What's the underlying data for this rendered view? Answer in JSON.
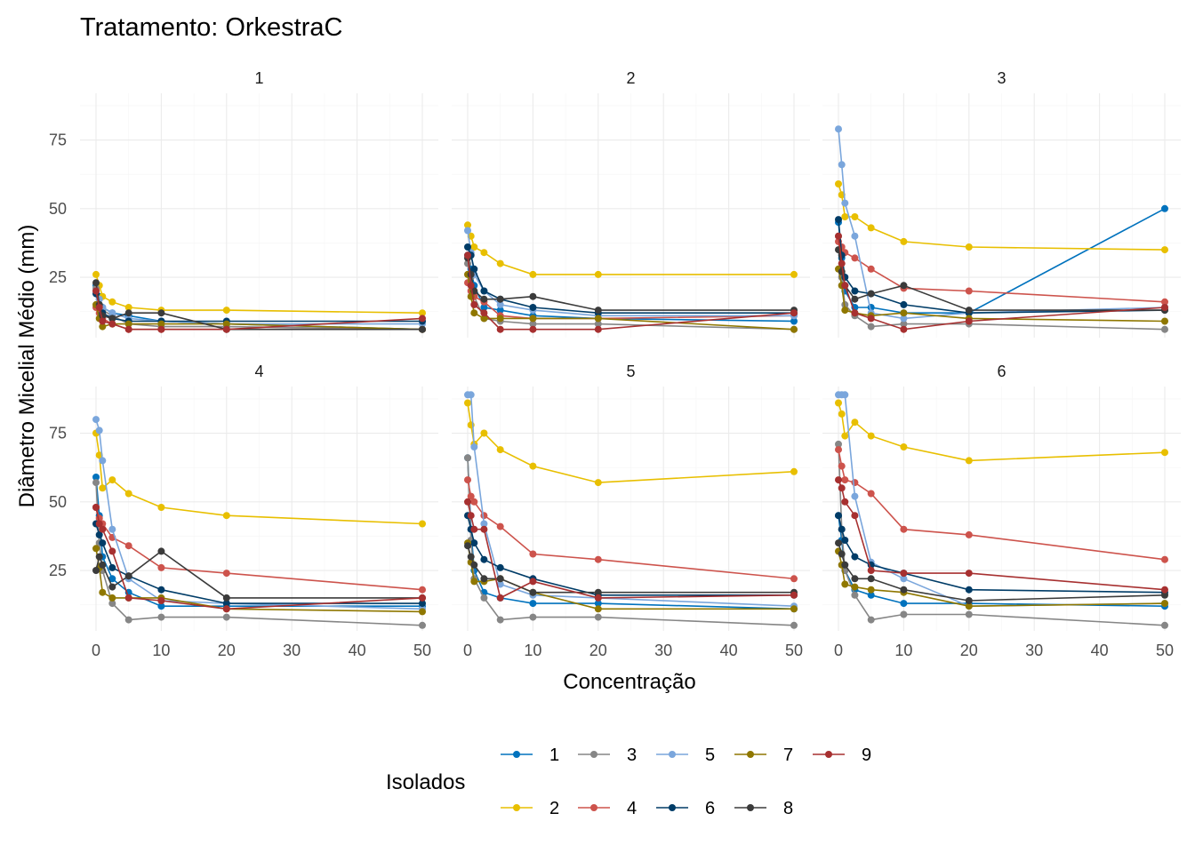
{
  "chart_data": {
    "type": "line",
    "title": "Tratamento: OrkestraC",
    "xlabel": "Concentração",
    "ylabel": "Diâmetro Micelial Médio (mm)",
    "x": [
      0,
      0.5,
      1,
      2.5,
      5,
      10,
      20,
      50
    ],
    "xlim": [
      0,
      50
    ],
    "ylim": [
      3,
      92
    ],
    "x_ticks": [
      "0",
      "10",
      "20",
      "30",
      "40",
      "50"
    ],
    "y_ticks": [
      "25",
      "50",
      "75"
    ],
    "grid": true,
    "legend": {
      "title": "Isolados",
      "position": "bottom",
      "entries": [
        "1",
        "3",
        "5",
        "7",
        "9",
        "2",
        "4",
        "6",
        "8"
      ]
    },
    "series_colors": {
      "1": "#0072BD",
      "2": "#E8BF00",
      "3": "#868686",
      "4": "#CD534C",
      "5": "#7AA6DC",
      "6": "#003C67",
      "7": "#8F7700",
      "8": "#3B3B3B",
      "9": "#A73030"
    },
    "panels": [
      {
        "label": "1",
        "series": [
          {
            "name": "1",
            "values": [
              22,
              18,
              14,
              12,
              11,
              9,
              8,
              6
            ]
          },
          {
            "name": "2",
            "values": [
              26,
              22,
              18,
              16,
              14,
              13,
              13,
              12
            ]
          },
          {
            "name": "3",
            "values": [
              21,
              17,
              13,
              11,
              8,
              7,
              7,
              6
            ]
          },
          {
            "name": "4",
            "values": [
              14,
              12,
              10,
              8,
              6,
              6,
              6,
              6
            ]
          },
          {
            "name": "5",
            "values": [
              20,
              17,
              14,
              12,
              10,
              9,
              8,
              8
            ]
          },
          {
            "name": "6",
            "values": [
              19,
              15,
              12,
              10,
              9,
              9,
              9,
              9
            ]
          },
          {
            "name": "7",
            "values": [
              15,
              10,
              7,
              8,
              8,
              8,
              8,
              6
            ]
          },
          {
            "name": "8",
            "values": [
              23,
              15,
              11,
              10,
              12,
              12,
              6,
              6
            ]
          },
          {
            "name": "9",
            "values": [
              20,
              14,
              9,
              8,
              6,
              6,
              6,
              10
            ]
          }
        ]
      },
      {
        "label": "2",
        "series": [
          {
            "name": "1",
            "values": [
              33,
              28,
              22,
              14,
              13,
              11,
              10,
              9
            ]
          },
          {
            "name": "2",
            "values": [
              44,
              40,
              36,
              34,
              30,
              26,
              26,
              26
            ]
          },
          {
            "name": "3",
            "values": [
              30,
              25,
              18,
              10,
              9,
              8,
              8,
              6
            ]
          },
          {
            "name": "4",
            "values": [
              23,
              20,
              18,
              16,
              11,
              10,
              10,
              11
            ]
          },
          {
            "name": "5",
            "values": [
              42,
              34,
              26,
              20,
              15,
              13,
              11,
              11
            ]
          },
          {
            "name": "6",
            "values": [
              36,
              33,
              28,
              20,
              17,
              14,
              12,
              12
            ]
          },
          {
            "name": "7",
            "values": [
              26,
              18,
              12,
              10,
              10,
              10,
              10,
              6
            ]
          },
          {
            "name": "8",
            "values": [
              32,
              26,
              20,
              17,
              17,
              18,
              13,
              13
            ]
          },
          {
            "name": "9",
            "values": [
              33,
              22,
              15,
              12,
              6,
              6,
              6,
              12
            ]
          }
        ]
      },
      {
        "label": "3",
        "series": [
          {
            "name": "1",
            "values": [
              45,
              32,
              20,
              14,
              14,
              12,
              12,
              50
            ]
          },
          {
            "name": "2",
            "values": [
              59,
              55,
              47,
              47,
              43,
              38,
              36,
              35
            ]
          },
          {
            "name": "3",
            "values": [
              40,
              25,
              15,
              11,
              7,
              8,
              8,
              6
            ]
          },
          {
            "name": "4",
            "values": [
              38,
              36,
              34,
              32,
              28,
              21,
              20,
              16
            ]
          },
          {
            "name": "5",
            "values": [
              79,
              66,
              52,
              40,
              12,
              10,
              12,
              14
            ]
          },
          {
            "name": "6",
            "values": [
              46,
              33,
              25,
              20,
              19,
              15,
              12,
              13
            ]
          },
          {
            "name": "7",
            "values": [
              28,
              22,
              13,
              12,
              11,
              12,
              10,
              9
            ]
          },
          {
            "name": "8",
            "values": [
              35,
              27,
              22,
              17,
              19,
              22,
              13,
              13
            ]
          },
          {
            "name": "9",
            "values": [
              40,
              30,
              22,
              12,
              10,
              6,
              9,
              14
            ]
          }
        ]
      },
      {
        "label": "4",
        "series": [
          {
            "name": "1",
            "values": [
              59,
              45,
              30,
              22,
              17,
              12,
              12,
              12
            ]
          },
          {
            "name": "2",
            "values": [
              75,
              67,
              55,
              58,
              53,
              48,
              45,
              42
            ]
          },
          {
            "name": "3",
            "values": [
              57,
              35,
              25,
              13,
              7,
              8,
              8,
              5
            ]
          },
          {
            "name": "4",
            "values": [
              48,
              44,
              42,
              37,
              34,
              26,
              24,
              18
            ]
          },
          {
            "name": "5",
            "values": [
              80,
              76,
              65,
              40,
              22,
              14,
              13,
              11
            ]
          },
          {
            "name": "6",
            "values": [
              42,
              38,
              35,
              26,
              23,
              18,
              13,
              13
            ]
          },
          {
            "name": "7",
            "values": [
              33,
              26,
              17,
              15,
              15,
              15,
              11,
              10
            ]
          },
          {
            "name": "8",
            "values": [
              25,
              30,
              27,
              19,
              23,
              32,
              15,
              15
            ]
          },
          {
            "name": "9",
            "values": [
              48,
              42,
              40,
              32,
              15,
              14,
              11,
              15
            ]
          }
        ]
      },
      {
        "label": "5",
        "series": [
          {
            "name": "1",
            "values": [
              66,
              40,
              25,
              17,
              15,
              13,
              13,
              11
            ]
          },
          {
            "name": "2",
            "values": [
              86,
              78,
              71,
              75,
              69,
              63,
              57,
              61
            ]
          },
          {
            "name": "3",
            "values": [
              66,
              36,
              22,
              15,
              7,
              8,
              8,
              5
            ]
          },
          {
            "name": "4",
            "values": [
              58,
              52,
              50,
              45,
              41,
              31,
              29,
              22
            ]
          },
          {
            "name": "5",
            "values": [
              89,
              89,
              70,
              42,
              20,
              16,
              15,
              12
            ]
          },
          {
            "name": "6",
            "values": [
              45,
              40,
              35,
              29,
              26,
              22,
              16,
              16
            ]
          },
          {
            "name": "7",
            "values": [
              35,
              28,
              21,
              21,
              22,
              17,
              11,
              11
            ]
          },
          {
            "name": "8",
            "values": [
              34,
              30,
              27,
              22,
              22,
              17,
              17,
              17
            ]
          },
          {
            "name": "9",
            "values": [
              50,
              45,
              40,
              40,
              15,
              21,
              15,
              16
            ]
          }
        ]
      },
      {
        "label": "6",
        "series": [
          {
            "name": "1",
            "values": [
              45,
              36,
              25,
              18,
              16,
              13,
              13,
              12
            ]
          },
          {
            "name": "2",
            "values": [
              86,
              82,
              74,
              79,
              74,
              70,
              65,
              68
            ]
          },
          {
            "name": "3",
            "values": [
              71,
              40,
              25,
              16,
              7,
              9,
              9,
              5
            ]
          },
          {
            "name": "4",
            "values": [
              69,
              63,
              58,
              57,
              53,
              40,
              38,
              29
            ]
          },
          {
            "name": "5",
            "values": [
              89,
              89,
              89,
              52,
              28,
              22,
              12,
              13
            ]
          },
          {
            "name": "6",
            "values": [
              45,
              40,
              36,
              30,
              27,
              24,
              18,
              17
            ]
          },
          {
            "name": "7",
            "values": [
              32,
              27,
              20,
              19,
              18,
              17,
              12,
              13
            ]
          },
          {
            "name": "8",
            "values": [
              35,
              31,
              27,
              22,
              22,
              18,
              14,
              16
            ]
          },
          {
            "name": "9",
            "values": [
              58,
              55,
              50,
              45,
              25,
              24,
              24,
              18
            ]
          }
        ]
      }
    ]
  }
}
